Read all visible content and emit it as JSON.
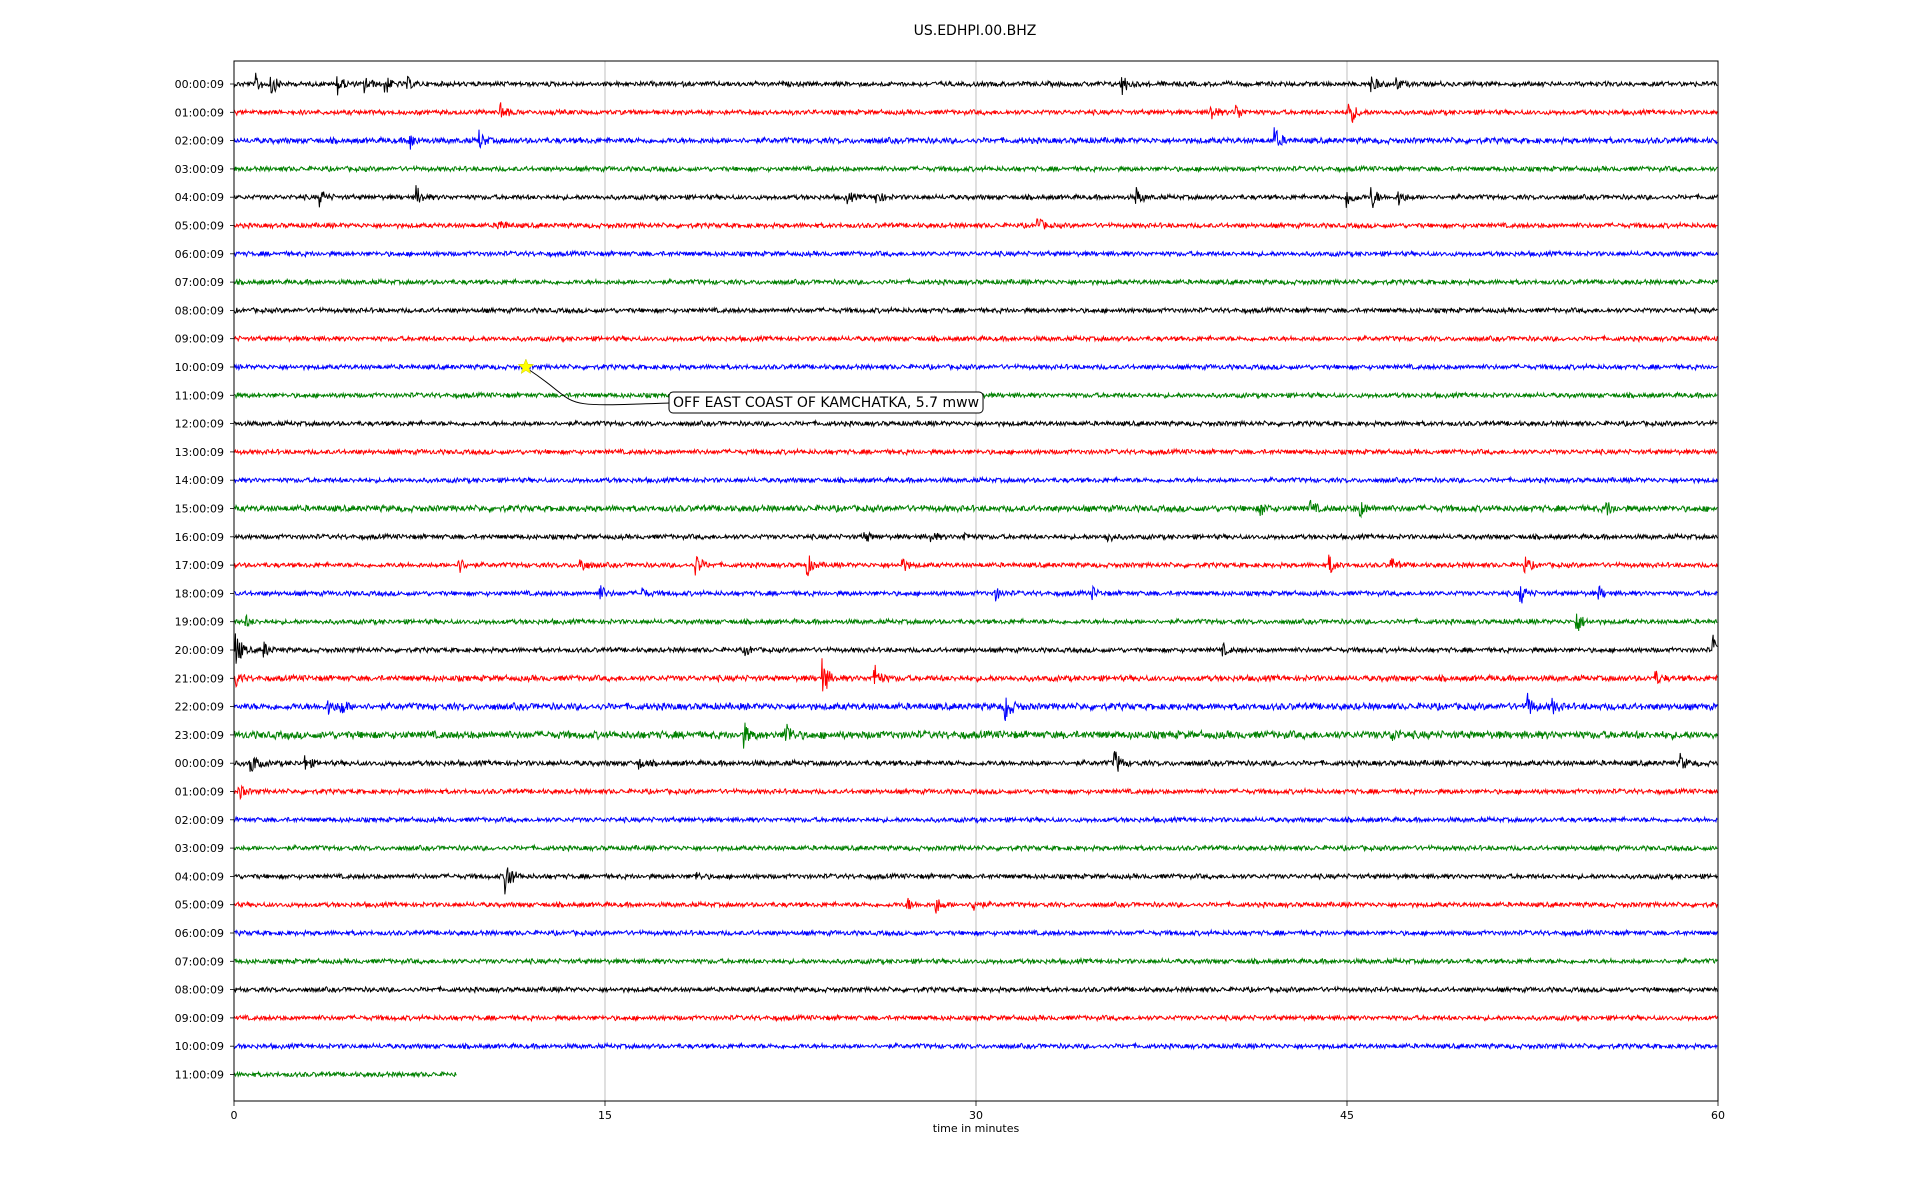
{
  "chart_data": {
    "type": "line",
    "title": "US.EDHPI.00.BHZ",
    "xlabel": "time in minutes",
    "ylabel": "",
    "xlim": [
      0,
      60
    ],
    "x_ticks": [
      "0",
      "15",
      "30",
      "45",
      "60"
    ],
    "x_tick_values": [
      0,
      15,
      30,
      45,
      60
    ],
    "grid": "vertical",
    "colors_cycle": [
      "#000000",
      "#ff0000",
      "#0000ff",
      "#008000"
    ],
    "rows": [
      {
        "label": "00:00:09",
        "color": "#000000",
        "end_minute": 60,
        "noise": 1.0,
        "events": [
          {
            "t": 0.9,
            "a": 9
          },
          {
            "t": 1.5,
            "a": 12
          },
          {
            "t": 4.2,
            "a": 11
          },
          {
            "t": 5.3,
            "a": 9
          },
          {
            "t": 6.1,
            "a": 11
          },
          {
            "t": 7.0,
            "a": 6
          },
          {
            "t": 35.9,
            "a": 12
          },
          {
            "t": 46.0,
            "a": 9
          },
          {
            "t": 47.0,
            "a": 6
          }
        ]
      },
      {
        "label": "01:00:09",
        "color": "#ff0000",
        "end_minute": 60,
        "noise": 1.0,
        "events": [
          {
            "t": 10.8,
            "a": 10
          },
          {
            "t": 39.5,
            "a": 9
          },
          {
            "t": 40.5,
            "a": 10
          },
          {
            "t": 45.1,
            "a": 16
          }
        ]
      },
      {
        "label": "02:00:09",
        "color": "#0000ff",
        "end_minute": 60,
        "noise": 1.2,
        "events": [
          {
            "t": 7.1,
            "a": 9
          },
          {
            "t": 9.9,
            "a": 10
          },
          {
            "t": 42.1,
            "a": 11
          }
        ]
      },
      {
        "label": "03:00:09",
        "color": "#008000",
        "end_minute": 60,
        "noise": 1.0,
        "events": []
      },
      {
        "label": "04:00:09",
        "color": "#000000",
        "end_minute": 60,
        "noise": 1.0,
        "events": [
          {
            "t": 3.5,
            "a": 8
          },
          {
            "t": 7.4,
            "a": 10
          },
          {
            "t": 24.8,
            "a": 6
          },
          {
            "t": 26.0,
            "a": 7
          },
          {
            "t": 36.5,
            "a": 9
          },
          {
            "t": 45.0,
            "a": 12
          },
          {
            "t": 46.0,
            "a": 12
          },
          {
            "t": 47.1,
            "a": 8
          }
        ]
      },
      {
        "label": "05:00:09",
        "color": "#ff0000",
        "end_minute": 60,
        "noise": 1.0,
        "events": [
          {
            "t": 10.7,
            "a": 8
          },
          {
            "t": 32.5,
            "a": 8
          }
        ]
      },
      {
        "label": "06:00:09",
        "color": "#0000ff",
        "end_minute": 60,
        "noise": 1.0,
        "events": []
      },
      {
        "label": "07:00:09",
        "color": "#008000",
        "end_minute": 60,
        "noise": 1.0,
        "events": []
      },
      {
        "label": "08:00:09",
        "color": "#000000",
        "end_minute": 60,
        "noise": 1.0,
        "events": []
      },
      {
        "label": "09:00:09",
        "color": "#ff0000",
        "end_minute": 60,
        "noise": 1.0,
        "events": []
      },
      {
        "label": "10:00:09",
        "color": "#0000ff",
        "end_minute": 60,
        "noise": 1.0,
        "events": []
      },
      {
        "label": "11:00:09",
        "color": "#008000",
        "end_minute": 60,
        "noise": 1.0,
        "events": []
      },
      {
        "label": "12:00:09",
        "color": "#000000",
        "end_minute": 60,
        "noise": 1.0,
        "events": []
      },
      {
        "label": "13:00:09",
        "color": "#ff0000",
        "end_minute": 60,
        "noise": 1.0,
        "events": []
      },
      {
        "label": "14:00:09",
        "color": "#0000ff",
        "end_minute": 60,
        "noise": 1.0,
        "events": []
      },
      {
        "label": "15:00:09",
        "color": "#008000",
        "end_minute": 60,
        "noise": 1.3,
        "events": [
          {
            "t": 41.5,
            "a": 7
          },
          {
            "t": 43.5,
            "a": 7
          },
          {
            "t": 45.5,
            "a": 9
          },
          {
            "t": 55.5,
            "a": 7
          }
        ]
      },
      {
        "label": "16:00:09",
        "color": "#000000",
        "end_minute": 60,
        "noise": 1.0,
        "events": [
          {
            "t": 25.5,
            "a": 6
          },
          {
            "t": 28.2,
            "a": 5
          },
          {
            "t": 29.5,
            "a": 5
          },
          {
            "t": 35.3,
            "a": 6
          }
        ]
      },
      {
        "label": "17:00:09",
        "color": "#ff0000",
        "end_minute": 60,
        "noise": 1.0,
        "events": [
          {
            "t": 9.1,
            "a": 8
          },
          {
            "t": 14.0,
            "a": 9
          },
          {
            "t": 18.7,
            "a": 11
          },
          {
            "t": 23.2,
            "a": 10
          },
          {
            "t": 27.0,
            "a": 8
          },
          {
            "t": 44.3,
            "a": 9
          },
          {
            "t": 46.8,
            "a": 7
          },
          {
            "t": 52.2,
            "a": 8
          }
        ]
      },
      {
        "label": "18:00:09",
        "color": "#0000ff",
        "end_minute": 60,
        "noise": 1.0,
        "events": [
          {
            "t": 14.8,
            "a": 8
          },
          {
            "t": 16.5,
            "a": 5
          },
          {
            "t": 30.8,
            "a": 6
          },
          {
            "t": 34.7,
            "a": 6
          },
          {
            "t": 52.0,
            "a": 12
          },
          {
            "t": 55.2,
            "a": 6
          }
        ]
      },
      {
        "label": "19:00:09",
        "color": "#008000",
        "end_minute": 60,
        "noise": 1.0,
        "events": [
          {
            "t": 0.5,
            "a": 5
          },
          {
            "t": 54.3,
            "a": 12
          }
        ]
      },
      {
        "label": "20:00:09",
        "color": "#000000",
        "end_minute": 60,
        "noise": 1.0,
        "events": [
          {
            "t": 0.1,
            "a": 18
          },
          {
            "t": 1.2,
            "a": 8
          },
          {
            "t": 20.7,
            "a": 5
          },
          {
            "t": 40.0,
            "a": 5
          },
          {
            "t": 59.8,
            "a": 14
          }
        ]
      },
      {
        "label": "21:00:09",
        "color": "#ff0000",
        "end_minute": 60,
        "noise": 1.2,
        "events": [
          {
            "t": 0.1,
            "a": 7
          },
          {
            "t": 23.8,
            "a": 20
          },
          {
            "t": 25.9,
            "a": 14
          },
          {
            "t": 57.5,
            "a": 6
          }
        ]
      },
      {
        "label": "22:00:09",
        "color": "#0000ff",
        "end_minute": 60,
        "noise": 1.4,
        "events": [
          {
            "t": 3.8,
            "a": 8
          },
          {
            "t": 4.3,
            "a": 9
          },
          {
            "t": 31.2,
            "a": 16
          },
          {
            "t": 52.3,
            "a": 12
          },
          {
            "t": 53.3,
            "a": 7
          }
        ]
      },
      {
        "label": "23:00:09",
        "color": "#008000",
        "end_minute": 60,
        "noise": 1.6,
        "events": [
          {
            "t": 20.6,
            "a": 12
          },
          {
            "t": 22.3,
            "a": 16
          },
          {
            "t": 46.8,
            "a": 7
          }
        ]
      },
      {
        "label": "00:00:09",
        "color": "#000000",
        "end_minute": 60,
        "noise": 1.1,
        "events": [
          {
            "t": 0.7,
            "a": 12
          },
          {
            "t": 2.9,
            "a": 7
          },
          {
            "t": 16.4,
            "a": 5
          },
          {
            "t": 35.6,
            "a": 15
          },
          {
            "t": 58.5,
            "a": 8
          }
        ]
      },
      {
        "label": "01:00:09",
        "color": "#ff0000",
        "end_minute": 60,
        "noise": 1.0,
        "events": [
          {
            "t": 0.2,
            "a": 8
          }
        ]
      },
      {
        "label": "02:00:09",
        "color": "#0000ff",
        "end_minute": 60,
        "noise": 1.0,
        "events": []
      },
      {
        "label": "03:00:09",
        "color": "#008000",
        "end_minute": 60,
        "noise": 1.0,
        "events": []
      },
      {
        "label": "04:00:09",
        "color": "#000000",
        "end_minute": 60,
        "noise": 1.0,
        "events": [
          {
            "t": 11.0,
            "a": 22
          },
          {
            "t": 18.7,
            "a": 4
          }
        ]
      },
      {
        "label": "05:00:09",
        "color": "#ff0000",
        "end_minute": 60,
        "noise": 1.0,
        "events": [
          {
            "t": 27.2,
            "a": 7
          },
          {
            "t": 28.4,
            "a": 8
          },
          {
            "t": 29.9,
            "a": 7
          }
        ]
      },
      {
        "label": "06:00:09",
        "color": "#0000ff",
        "end_minute": 60,
        "noise": 1.0,
        "events": []
      },
      {
        "label": "07:00:09",
        "color": "#008000",
        "end_minute": 60,
        "noise": 1.0,
        "events": []
      },
      {
        "label": "08:00:09",
        "color": "#000000",
        "end_minute": 60,
        "noise": 1.0,
        "events": []
      },
      {
        "label": "09:00:09",
        "color": "#ff0000",
        "end_minute": 60,
        "noise": 1.0,
        "events": []
      },
      {
        "label": "10:00:09",
        "color": "#0000ff",
        "end_minute": 60,
        "noise": 1.0,
        "events": []
      },
      {
        "label": "11:00:09",
        "color": "#008000",
        "end_minute": 9,
        "noise": 1.0,
        "events": []
      }
    ],
    "annotation": {
      "text": "OFF EAST COAST OF KAMCHATKA, 5.7 mww",
      "marker_row": 10,
      "marker_minute": 11.8,
      "marker_color": "#ffff00"
    }
  }
}
